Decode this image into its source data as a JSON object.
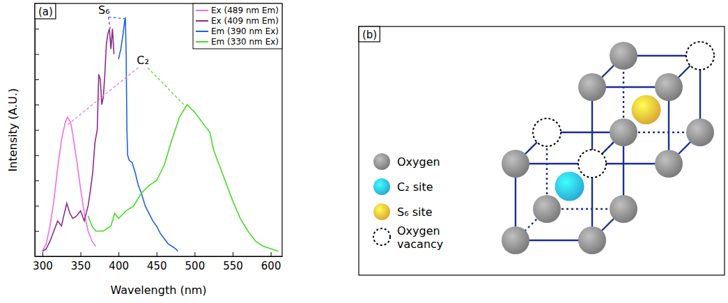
{
  "chart_data": {
    "type": "line",
    "panel_label": "(a)",
    "x_label": "Wavelength (nm)",
    "y_label": "Intensity (A.U.)",
    "xlim": [
      290,
      615
    ],
    "ylim": [
      0,
      1
    ],
    "xticks": [
      300,
      350,
      400,
      450,
      500,
      550,
      600
    ],
    "yticks": [
      0.1,
      0.2,
      0.3,
      0.4,
      0.5,
      0.6,
      0.7,
      0.8,
      0.9
    ],
    "tick_labels": "x",
    "grid": false,
    "legend": "upper right",
    "series": [
      {
        "name": "Ex (489 nm Em)",
        "color": "#ee6fe0",
        "x": [
          300,
          305,
          310,
          315,
          320,
          325,
          330,
          333,
          337,
          340,
          345,
          350,
          355,
          360,
          365,
          370
        ],
        "values": [
          0.02,
          0.05,
          0.12,
          0.22,
          0.35,
          0.46,
          0.53,
          0.55,
          0.53,
          0.48,
          0.38,
          0.27,
          0.17,
          0.1,
          0.06,
          0.04
        ]
      },
      {
        "name": "Ex (409 nm Em)",
        "color": "#8b2a8b",
        "x": [
          300,
          305,
          310,
          315,
          320,
          325,
          328,
          332,
          336,
          340,
          345,
          350,
          355,
          360,
          363,
          366,
          369,
          372,
          374,
          376,
          378,
          380,
          382,
          384,
          386,
          388,
          390,
          392,
          394
        ],
        "values": [
          0.02,
          0.03,
          0.06,
          0.1,
          0.14,
          0.12,
          0.16,
          0.21,
          0.17,
          0.15,
          0.16,
          0.18,
          0.14,
          0.2,
          0.26,
          0.33,
          0.45,
          0.5,
          0.72,
          0.7,
          0.6,
          0.63,
          0.72,
          0.84,
          0.88,
          0.9,
          0.82,
          0.9,
          0.8
        ]
      },
      {
        "name": "Em (390 nm Ex)",
        "color": "#1f63d6",
        "x": [
          400,
          403,
          406,
          408,
          409,
          410,
          411,
          412,
          414,
          418,
          422,
          426,
          430,
          435,
          440,
          445,
          450,
          455,
          460,
          465,
          470,
          475,
          478
        ],
        "values": [
          0.78,
          0.82,
          0.88,
          0.93,
          0.945,
          0.8,
          0.5,
          0.4,
          0.38,
          0.37,
          0.33,
          0.28,
          0.25,
          0.2,
          0.17,
          0.14,
          0.12,
          0.09,
          0.07,
          0.05,
          0.04,
          0.03,
          0.02
        ]
      },
      {
        "name": "Em (330 nm Ex)",
        "color": "#44dd22",
        "x": [
          360,
          365,
          370,
          380,
          390,
          395,
          400,
          410,
          420,
          430,
          440,
          450,
          460,
          470,
          480,
          490,
          500,
          510,
          520,
          525,
          530,
          540,
          550,
          560,
          570,
          580,
          590,
          600,
          610
        ],
        "values": [
          0.16,
          0.12,
          0.1,
          0.1,
          0.12,
          0.17,
          0.15,
          0.18,
          0.2,
          0.25,
          0.28,
          0.3,
          0.36,
          0.46,
          0.55,
          0.6,
          0.57,
          0.53,
          0.49,
          0.42,
          0.38,
          0.3,
          0.22,
          0.15,
          0.1,
          0.06,
          0.04,
          0.03,
          0.02
        ]
      }
    ],
    "annotations": [
      {
        "text": "S₆",
        "x": 381,
        "y": 0.96,
        "lines_to": [
          {
            "x": 389,
            "y": 0.9,
            "color": "#8b2a8b"
          },
          {
            "x": 408,
            "y": 0.94,
            "color": "#1f63d6"
          }
        ]
      },
      {
        "text": "C₂",
        "x": 432,
        "y": 0.76,
        "lines_to": [
          {
            "x": 333,
            "y": 0.52,
            "color": "#ee6fe0"
          },
          {
            "x": 489,
            "y": 0.59,
            "color": "#44dd22"
          }
        ]
      }
    ]
  },
  "diagram": {
    "label": "(b)",
    "legend": [
      {
        "label": "Oxygen",
        "fill": "#8c8c8c"
      },
      {
        "label": "C₂ site",
        "fill": "#2ec4f2"
      },
      {
        "label": "S₆ site",
        "fill": "#f8c03a"
      },
      {
        "label": "Oxygen vacancy",
        "fill": null
      }
    ]
  }
}
